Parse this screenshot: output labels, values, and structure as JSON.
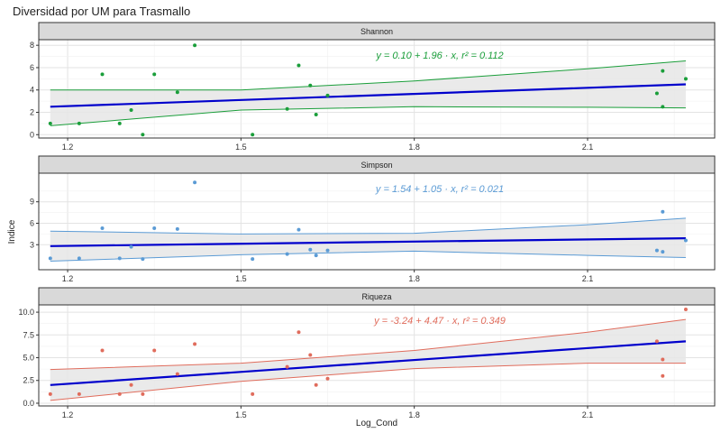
{
  "chart_data": {
    "type": "scatter",
    "title": "Diversidad por UM para Trasmallo",
    "xlabel": "Log_Cond",
    "ylabel": "Indice",
    "xlim": [
      1.15,
      2.32
    ],
    "x_ticks": [
      "1.2",
      "1.5",
      "1.8",
      "2.1"
    ],
    "x_tick_values": [
      1.2,
      1.5,
      1.8,
      2.1
    ],
    "fit_line_color": "#0000cc",
    "band_fill": "#e6e6e6",
    "panels": [
      {
        "label": "Shannon",
        "color": "#1a9e3a",
        "equation": "y = 0.10 + 1.96 · x,  r² = 0.112",
        "ylim": [
          -0.3,
          8.5
        ],
        "y_ticks": [
          "0",
          "2",
          "4",
          "6",
          "8"
        ],
        "y_tick_values": [
          0,
          2,
          4,
          6,
          8
        ],
        "fit": {
          "x": [
            1.17,
            2.27
          ],
          "y": [
            2.5,
            4.5
          ]
        },
        "band_upper": {
          "x": [
            1.17,
            1.5,
            1.8,
            2.1,
            2.27
          ],
          "y": [
            4.0,
            4.0,
            4.8,
            5.9,
            6.6
          ]
        },
        "band_lower": {
          "x": [
            1.17,
            1.5,
            1.8,
            2.1,
            2.27
          ],
          "y": [
            0.8,
            2.2,
            2.5,
            2.45,
            2.4
          ]
        },
        "points": {
          "x": [
            1.17,
            1.22,
            1.26,
            1.29,
            1.31,
            1.33,
            1.35,
            1.39,
            1.42,
            1.52,
            1.58,
            1.6,
            1.62,
            1.63,
            1.65,
            2.22,
            2.23,
            2.23,
            2.27
          ],
          "y": [
            1.0,
            1.0,
            5.4,
            1.0,
            2.2,
            0.0,
            5.4,
            3.8,
            8.0,
            0.0,
            2.3,
            6.2,
            4.4,
            1.8,
            3.5,
            3.7,
            5.7,
            2.5,
            5.0
          ]
        }
      },
      {
        "label": "Simpson",
        "color": "#5b9bd5",
        "equation": "y = 1.54 + 1.05 · x,  r² = 0.021",
        "ylim": [
          -0.5,
          13.0
        ],
        "y_ticks": [
          "3",
          "6",
          "9"
        ],
        "y_tick_values": [
          3,
          6,
          9
        ],
        "fit": {
          "x": [
            1.17,
            2.27
          ],
          "y": [
            2.8,
            3.9
          ]
        },
        "band_upper": {
          "x": [
            1.17,
            1.5,
            1.8,
            2.1,
            2.27
          ],
          "y": [
            4.9,
            4.5,
            4.6,
            5.8,
            6.7
          ]
        },
        "band_lower": {
          "x": [
            1.17,
            1.5,
            1.8,
            2.1,
            2.27
          ],
          "y": [
            0.7,
            1.6,
            2.1,
            1.5,
            1.2
          ]
        },
        "points": {
          "x": [
            1.17,
            1.22,
            1.26,
            1.29,
            1.31,
            1.33,
            1.35,
            1.39,
            1.42,
            1.52,
            1.58,
            1.6,
            1.62,
            1.63,
            1.65,
            2.22,
            2.23,
            2.23,
            2.27
          ],
          "y": [
            1.1,
            1.1,
            5.3,
            1.1,
            2.7,
            1.0,
            5.3,
            5.2,
            11.7,
            1.0,
            1.7,
            5.1,
            2.3,
            1.5,
            2.2,
            2.2,
            7.6,
            2.0,
            3.6
          ]
        }
      },
      {
        "label": "Riqueza",
        "color": "#e06c5c",
        "equation": "y = -3.24 + 4.47 · x,  r² = 0.349",
        "ylim": [
          -0.3,
          10.8
        ],
        "y_ticks": [
          "0.0",
          "2.5",
          "5.0",
          "7.5",
          "10.0"
        ],
        "y_tick_values": [
          0,
          2.5,
          5,
          7.5,
          10
        ],
        "fit": {
          "x": [
            1.17,
            2.27
          ],
          "y": [
            2.0,
            6.8
          ]
        },
        "band_upper": {
          "x": [
            1.17,
            1.5,
            1.8,
            2.1,
            2.27
          ],
          "y": [
            3.7,
            4.4,
            5.8,
            7.8,
            9.2
          ]
        },
        "band_lower": {
          "x": [
            1.17,
            1.5,
            1.8,
            2.1,
            2.27
          ],
          "y": [
            0.3,
            2.4,
            3.8,
            4.4,
            4.4
          ]
        },
        "points": {
          "x": [
            1.17,
            1.22,
            1.26,
            1.29,
            1.31,
            1.33,
            1.35,
            1.39,
            1.42,
            1.52,
            1.58,
            1.6,
            1.62,
            1.63,
            1.65,
            2.22,
            2.23,
            2.23,
            2.27
          ],
          "y": [
            1.0,
            1.0,
            5.8,
            1.0,
            2.0,
            1.0,
            5.8,
            3.2,
            6.5,
            1.0,
            4.0,
            7.8,
            5.3,
            2.0,
            2.7,
            6.8,
            4.8,
            3.0,
            10.3
          ]
        }
      }
    ]
  }
}
